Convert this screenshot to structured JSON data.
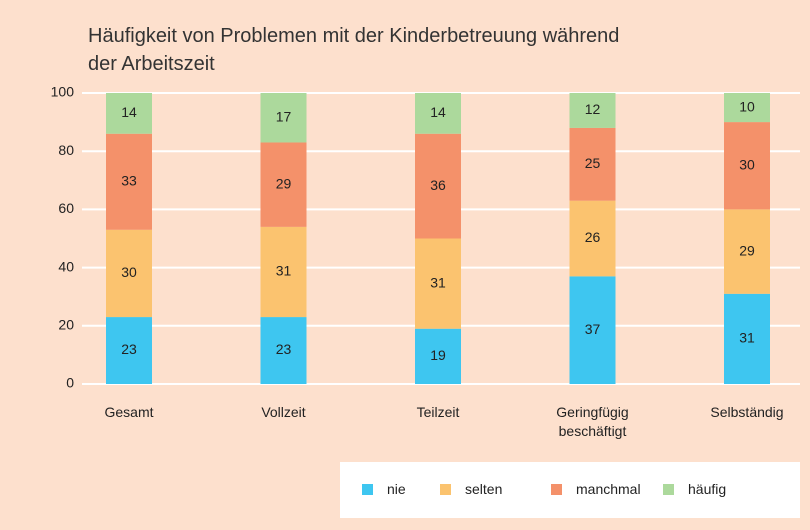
{
  "chart_data": {
    "type": "stacked_bar",
    "title": "Häufigkeit von Problemen mit der Kinderbetreuung während der Arbeitszeit",
    "categories": [
      "Gesamt",
      "Vollzeit",
      "Teilzeit",
      "Geringfügig beschäftigt",
      "Selbständig"
    ],
    "series": [
      {
        "name": "nie",
        "color": "#3ec6f0",
        "values": [
          23,
          23,
          19,
          37,
          31
        ]
      },
      {
        "name": "selten",
        "color": "#fbc36f",
        "values": [
          30,
          31,
          31,
          26,
          29
        ]
      },
      {
        "name": "manchmal",
        "color": "#f4916a",
        "values": [
          33,
          29,
          36,
          25,
          30
        ]
      },
      {
        "name": "häufig",
        "color": "#acd99c",
        "values": [
          14,
          17,
          14,
          12,
          10
        ]
      }
    ],
    "ylim": [
      0,
      100
    ],
    "yticks": [
      0,
      20,
      40,
      60,
      80,
      100
    ],
    "grid": true,
    "legend": "bottom-right"
  }
}
